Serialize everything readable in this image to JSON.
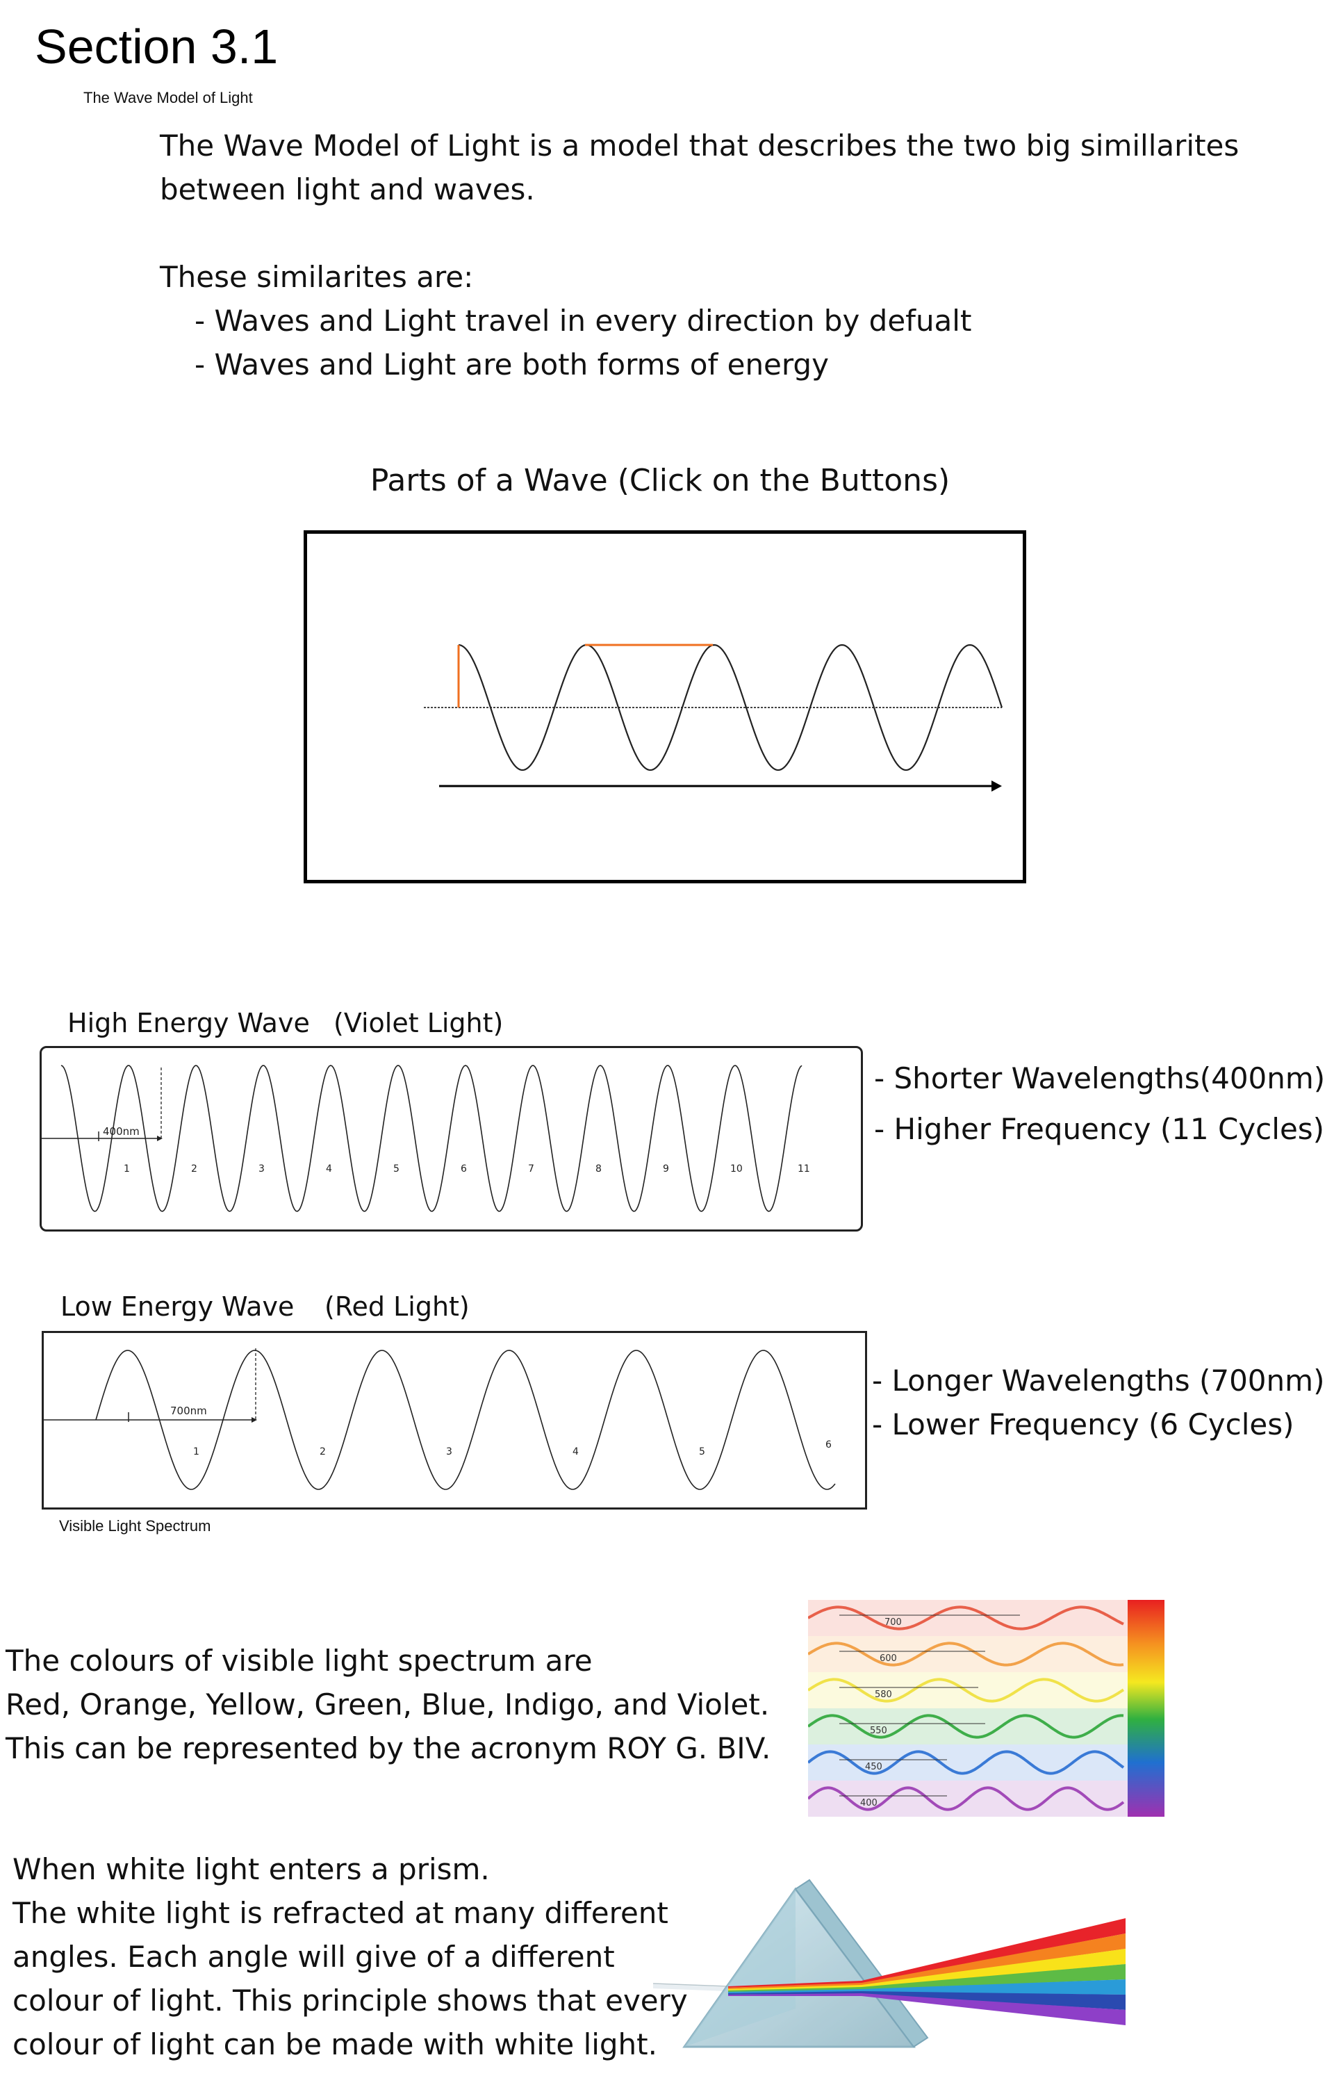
{
  "header": {
    "title": "Section 3.1",
    "subtitle": "The Wave Model of Light"
  },
  "intro": {
    "line1": "The Wave Model of Light is a model that describes the two big simillarites",
    "line2": "between light and waves.",
    "similarities_heading": "These similarites are:",
    "bullets": [
      "- Waves and Light travel in every direction by defualt",
      "- Waves and Light are both forms of energy"
    ]
  },
  "parts_of_wave": {
    "title": "Parts of a Wave (Click on the Buttons)"
  },
  "high_energy": {
    "title": "High Energy Wave",
    "light": "(Violet Light)",
    "wavelength_label": "400nm",
    "cycle_labels": [
      "1",
      "2",
      "3",
      "4",
      "5",
      "6",
      "7",
      "8",
      "9",
      "10",
      "11"
    ],
    "notes": [
      "- Shorter Wavelengths(400nm)",
      "- Higher Frequency (11 Cycles)"
    ]
  },
  "low_energy": {
    "title": "Low Energy Wave",
    "light": "(Red Light)",
    "wavelength_label": "700nm",
    "cycle_labels": [
      "1",
      "2",
      "3",
      "4",
      "5",
      "6"
    ],
    "notes": [
      "- Longer Wavelengths (700nm)",
      "- Lower Frequency (6 Cycles)"
    ]
  },
  "spectrum": {
    "label": "Visible Light Spectrum",
    "text": [
      "The colours of visible light spectrum are",
      "Red, Orange, Yellow, Green, Blue, Indigo, and Violet.",
      "This can be represented by the acronym ROY G. BIV."
    ],
    "band_labels": [
      "700",
      "600",
      "580",
      "550",
      "450",
      "400"
    ],
    "band_colors": [
      "#e8604a",
      "#f2a24a",
      "#f0e24a",
      "#3fae4a",
      "#3a7ad6",
      "#a24ab8"
    ]
  },
  "prism": {
    "text": [
      "When white light enters a prism.",
      "The white light is refracted at many different",
      "angles. Each angle will give of a different",
      "colour of light. This principle shows that every",
      "colour of light can be made with white light."
    ],
    "ray_colors": [
      "#e8232a",
      "#f5821f",
      "#f8e21a",
      "#5dbb46",
      "#2a9bd8",
      "#2a4ab0",
      "#8e3fc8"
    ]
  }
}
